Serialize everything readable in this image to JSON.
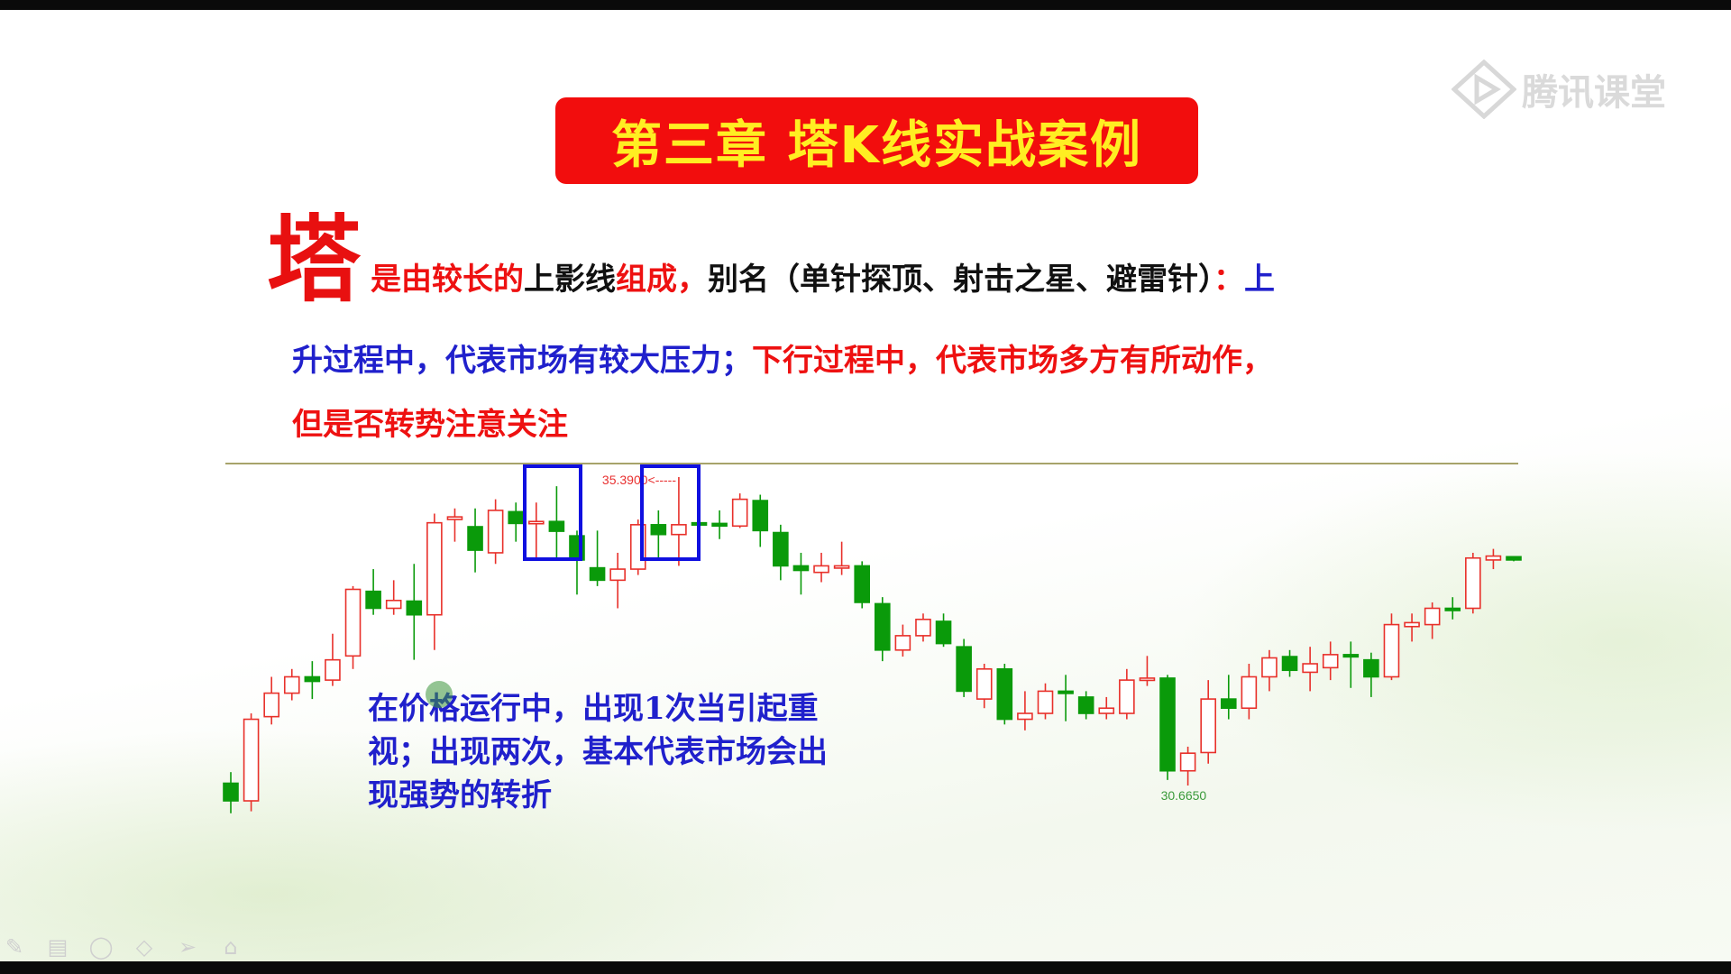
{
  "title": "第三章  塔K线实战案例",
  "logo_text": "腾讯课堂",
  "big_char": "塔",
  "description": {
    "line1": [
      {
        "text": "是由较长的",
        "color": "red"
      },
      {
        "text": "上影线",
        "color": "black"
      },
      {
        "text": "组成，",
        "color": "red"
      },
      {
        "text": "别名（单针探顶、射击之星、避雷针）",
        "color": "black"
      },
      {
        "text": "：",
        "color": "red"
      },
      {
        "text": "上",
        "color": "blue"
      }
    ],
    "line2": [
      {
        "text": "升过程中，代表市场有较大压力；",
        "color": "blue"
      },
      {
        "text": "下行过程中，代表市场多方有所动作，",
        "color": "red"
      }
    ],
    "line3": [
      {
        "text": "但是否转势注意关注",
        "color": "red"
      }
    ]
  },
  "note": [
    "在价格运行中，出现1次当引起重",
    "视；出现两次，基本代表市场会出",
    "现强势的转折"
  ],
  "toolbar": [
    "pen-icon",
    "whiteboard-icon",
    "ellipse-icon",
    "eraser-icon",
    "pointer-icon",
    "laser-icon"
  ],
  "colors": {
    "up": "#e8302a",
    "down": "#0a9a0a",
    "title_bg": "#f20d0d",
    "title_text": "#ffee22",
    "highlight_box": "#1010e0"
  },
  "chart_data": {
    "type": "candlestick",
    "fields": [
      "open",
      "close",
      "high",
      "low"
    ],
    "ylim": [
      30.665,
      35.39
    ],
    "annotations": [
      {
        "text": "35.3900<-----",
        "candle_index": 22,
        "price": 35.39,
        "color": "#e83030"
      },
      {
        "text": "30.6650",
        "candle_index": 47,
        "price": 30.665,
        "color": "#3a9a3a"
      }
    ],
    "highlight_ranges": [
      [
        15,
        17
      ],
      [
        21,
        23
      ]
    ],
    "candles": [
      [
        30.7,
        30.43,
        30.87,
        30.24
      ],
      [
        30.43,
        31.68,
        31.77,
        30.27
      ],
      [
        31.72,
        32.08,
        32.33,
        31.6
      ],
      [
        32.08,
        32.33,
        32.45,
        31.97
      ],
      [
        32.33,
        32.26,
        32.57,
        31.99
      ],
      [
        32.28,
        32.59,
        32.99,
        32.19
      ],
      [
        32.65,
        33.67,
        33.72,
        32.45
      ],
      [
        33.64,
        33.38,
        33.98,
        33.28
      ],
      [
        33.38,
        33.5,
        33.81,
        33.28
      ],
      [
        33.49,
        33.28,
        34.06,
        32.59
      ],
      [
        33.28,
        34.69,
        34.83,
        32.74
      ],
      [
        34.74,
        34.78,
        34.91,
        34.4
      ],
      [
        34.63,
        34.27,
        34.91,
        33.93
      ],
      [
        34.23,
        34.88,
        35.05,
        34.06
      ],
      [
        34.86,
        34.68,
        35.0,
        34.4
      ],
      [
        34.68,
        34.71,
        35.0,
        34.15
      ],
      [
        34.71,
        34.56,
        35.25,
        34.15
      ],
      [
        34.49,
        34.12,
        34.57,
        33.59
      ],
      [
        34.0,
        33.81,
        34.57,
        33.72
      ],
      [
        33.81,
        33.98,
        34.23,
        33.38
      ],
      [
        33.98,
        34.66,
        34.74,
        33.89
      ],
      [
        34.66,
        34.51,
        34.88,
        34.15
      ],
      [
        34.51,
        34.66,
        35.39,
        34.03
      ],
      [
        34.69,
        34.66,
        34.83,
        34.57
      ],
      [
        34.68,
        34.64,
        34.88,
        34.44
      ],
      [
        34.64,
        35.05,
        35.14,
        34.61
      ],
      [
        35.03,
        34.57,
        35.12,
        34.32
      ],
      [
        34.54,
        34.03,
        34.66,
        33.81
      ],
      [
        34.03,
        33.96,
        34.23,
        33.59
      ],
      [
        33.93,
        34.03,
        34.23,
        33.78
      ],
      [
        34.0,
        34.03,
        34.4,
        33.89
      ],
      [
        34.03,
        33.47,
        34.1,
        33.38
      ],
      [
        33.45,
        32.74,
        33.55,
        32.57
      ],
      [
        32.74,
        32.96,
        33.13,
        32.64
      ],
      [
        32.96,
        33.21,
        33.3,
        32.87
      ],
      [
        33.18,
        32.84,
        33.3,
        32.79
      ],
      [
        32.79,
        32.11,
        32.91,
        32.02
      ],
      [
        31.99,
        32.45,
        32.53,
        31.85
      ],
      [
        32.45,
        31.68,
        32.53,
        31.6
      ],
      [
        31.68,
        31.77,
        32.11,
        31.51
      ],
      [
        31.77,
        32.11,
        32.23,
        31.68
      ],
      [
        32.11,
        32.08,
        32.36,
        31.65
      ],
      [
        32.02,
        31.77,
        32.11,
        31.68
      ],
      [
        31.77,
        31.85,
        32.02,
        31.68
      ],
      [
        31.77,
        32.28,
        32.45,
        31.68
      ],
      [
        32.28,
        32.31,
        32.65,
        32.19
      ],
      [
        32.31,
        30.89,
        32.36,
        30.75
      ],
      [
        30.89,
        31.16,
        31.26,
        30.665
      ],
      [
        31.17,
        31.99,
        32.28,
        31.0
      ],
      [
        31.99,
        31.85,
        32.36,
        31.68
      ],
      [
        31.85,
        32.33,
        32.53,
        31.68
      ],
      [
        32.33,
        32.62,
        32.74,
        32.11
      ],
      [
        32.64,
        32.43,
        32.74,
        32.33
      ],
      [
        32.4,
        32.53,
        32.79,
        32.11
      ],
      [
        32.47,
        32.67,
        32.87,
        32.28
      ],
      [
        32.67,
        32.64,
        32.87,
        32.16
      ],
      [
        32.59,
        32.33,
        32.7,
        32.02
      ],
      [
        32.33,
        33.13,
        33.3,
        32.28
      ],
      [
        33.1,
        33.16,
        33.3,
        32.87
      ],
      [
        33.13,
        33.38,
        33.47,
        32.91
      ],
      [
        33.38,
        33.35,
        33.55,
        33.21
      ],
      [
        33.38,
        34.15,
        34.23,
        33.3
      ],
      [
        34.12,
        34.18,
        34.29,
        33.98
      ],
      [
        34.17,
        34.12,
        34.18,
        34.1
      ]
    ]
  }
}
